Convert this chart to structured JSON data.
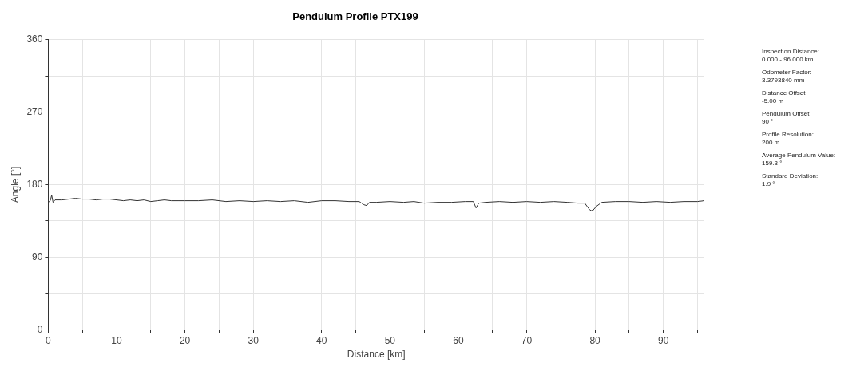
{
  "chart_data": {
    "type": "line",
    "title": "Pendulum Profile PTX199",
    "xlabel": "Distance [km]",
    "ylabel": "Angle [°]",
    "x": [
      0,
      0.3,
      0.5,
      0.7,
      1,
      2,
      3,
      4,
      5,
      6,
      7,
      8,
      9,
      10,
      11,
      12,
      13,
      14,
      15,
      16,
      17,
      18,
      19,
      20,
      22,
      24,
      26,
      28,
      30,
      32,
      34,
      36,
      38,
      40,
      42,
      44,
      45.5,
      46.2,
      46.6,
      47,
      48,
      50,
      52,
      53.5,
      55,
      57,
      59,
      61,
      62.2,
      62.6,
      63,
      64,
      66,
      68,
      70,
      72,
      74,
      76,
      77.5,
      78.5,
      79.2,
      79.6,
      80.2,
      81,
      83,
      85,
      87,
      89,
      91,
      93,
      95,
      96
    ],
    "series": [
      {
        "color": "#333333",
        "values": [
          158,
          160,
          167,
          158,
          161,
          161,
          162,
          163,
          162,
          162,
          161,
          162,
          162,
          161,
          160,
          161,
          160,
          161,
          159,
          160,
          161,
          160,
          160,
          160,
          160,
          161,
          159,
          160,
          159,
          160,
          159,
          160,
          158,
          160,
          160,
          159,
          159,
          155,
          154,
          158,
          158,
          159,
          158,
          159,
          157,
          158,
          158,
          159,
          159,
          151,
          157,
          158,
          159,
          158,
          159,
          158,
          159,
          158,
          157,
          157,
          149,
          147,
          153,
          158,
          159,
          159,
          158,
          159,
          158,
          159,
          159,
          160
        ]
      }
    ],
    "xlim": [
      0,
      96
    ],
    "xticks": [
      0,
      {
        "value": 5,
        "label": null
      },
      10,
      {
        "value": 15,
        "label": null
      },
      20,
      {
        "value": 25,
        "label": null
      },
      30,
      {
        "value": 35,
        "label": null
      },
      40,
      {
        "value": 45,
        "label": null
      },
      50,
      {
        "value": 55,
        "label": null
      },
      60,
      {
        "value": 65,
        "label": null
      },
      70,
      {
        "value": 75,
        "label": null
      },
      80,
      {
        "value": 85,
        "label": null
      },
      90,
      {
        "value": 95,
        "label": null
      }
    ],
    "ylim": [
      0,
      360
    ],
    "yticks": [
      0,
      {
        "value": 45,
        "label": null
      },
      90,
      {
        "value": 135,
        "label": null
      },
      180,
      {
        "value": 225,
        "label": null
      },
      270,
      {
        "value": 315,
        "label": null
      },
      360
    ],
    "grid": true,
    "legend": false,
    "marker": "none",
    "line_style": "solid",
    "annotations": [
      "Inspection Distance:\n0.000 - 96.000 km",
      "Odometer Factor:\n3.3793840 mm",
      "Distance Offset:\n-5.00 m",
      "Pendulum Offset:\n90 °",
      "Profile Resolution:\n200 m",
      "Average Pendulum Value:\n159.3 °",
      "Standard  Deviation:\n1.9 °"
    ]
  }
}
